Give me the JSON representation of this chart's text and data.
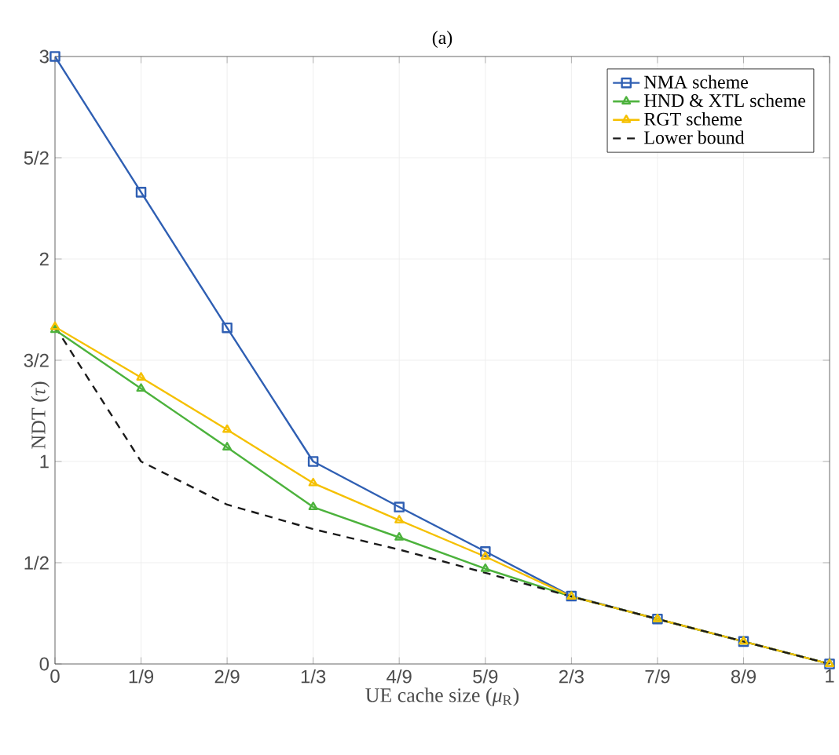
{
  "chart_data": {
    "type": "line",
    "title": "(a)",
    "xlabel": "UE cache size (*μ*$_{R}$)",
    "ylabel": "NDT (*τ*)",
    "x": [
      0,
      0.1111,
      0.2222,
      0.3333,
      0.4444,
      0.5556,
      0.6667,
      0.7778,
      0.8889,
      1
    ],
    "series": [
      {
        "name": "NMA scheme",
        "color": "#2f5fb3",
        "marker": "square",
        "line_style": "solid",
        "values": [
          3,
          2.33,
          1.66,
          1.0,
          0.775,
          0.555,
          0.335,
          0.222,
          0.111,
          0
        ]
      },
      {
        "name": "HND & XTL scheme",
        "color": "#4cb23c",
        "marker": "triangle",
        "line_style": "solid",
        "values": [
          1.65,
          1.36,
          1.07,
          0.775,
          0.625,
          0.47,
          0.333,
          0.222,
          0.111,
          0
        ]
      },
      {
        "name": "RGT scheme",
        "color": "#f5c000",
        "marker": "triangle",
        "line_style": "solid",
        "values": [
          1.665,
          1.415,
          1.157,
          0.893,
          0.71,
          0.53,
          0.333,
          0.222,
          0.111,
          0
        ]
      },
      {
        "name": "Lower bound",
        "color": "#1a1a1a",
        "marker": "none",
        "line_style": "dashed",
        "values": [
          1.667,
          1.0,
          0.787,
          0.666,
          0.565,
          0.45,
          0.333,
          0.222,
          0.111,
          0
        ]
      }
    ],
    "xlim": [
      0,
      1
    ],
    "ylim": [
      0,
      3
    ],
    "xticks": [
      0,
      {
        "value": 0.1111,
        "label": "1/9"
      },
      {
        "value": 0.2222,
        "label": "2/9"
      },
      {
        "value": 0.3333,
        "label": "1/3"
      },
      {
        "value": 0.4444,
        "label": "4/9"
      },
      {
        "value": 0.5556,
        "label": "5/9"
      },
      {
        "value": 0.6667,
        "label": "2/3"
      },
      {
        "value": 0.7778,
        "label": "7/9"
      },
      {
        "value": 0.8889,
        "label": "8/9"
      },
      1
    ],
    "yticks": [
      0,
      {
        "value": 0.5,
        "label": "1/2"
      },
      1,
      {
        "value": 1.5,
        "label": "3/2"
      },
      2,
      {
        "value": 2.5,
        "label": "5/2"
      },
      3
    ],
    "grid": true,
    "legend": "top right"
  }
}
